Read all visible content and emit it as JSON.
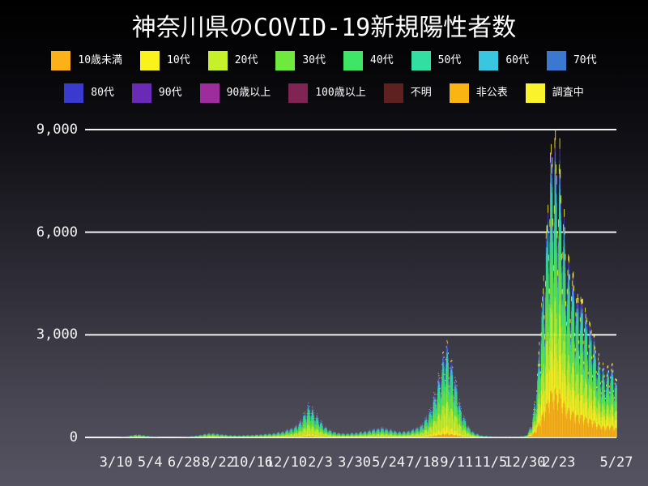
{
  "title": "神奈川県のCOVID-19新規陽性者数",
  "legend": {
    "row1": [
      {
        "label": "10歳未満",
        "color": "#FCB116"
      },
      {
        "label": "10代",
        "color": "#F9F21D"
      },
      {
        "label": "20代",
        "color": "#C6F12A"
      },
      {
        "label": "30代",
        "color": "#6FE93C"
      },
      {
        "label": "40代",
        "color": "#3FE566"
      },
      {
        "label": "50代",
        "color": "#31DFA2"
      },
      {
        "label": "60代",
        "color": "#39C6E0"
      },
      {
        "label": "70代",
        "color": "#3C78D0"
      }
    ],
    "row2": [
      {
        "label": "80代",
        "color": "#3A3ACF"
      },
      {
        "label": "90代",
        "color": "#6A2AB8"
      },
      {
        "label": "90歳以上",
        "color": "#9D2C9C"
      },
      {
        "label": "100歳以上",
        "color": "#802453"
      },
      {
        "label": "不明",
        "color": "#5F2020"
      },
      {
        "label": "非公表",
        "color": "#FBB513"
      },
      {
        "label": "調査中",
        "color": "#FAF32B"
      }
    ]
  },
  "chart_data": {
    "type": "bar",
    "subtype": "stacked-daily-bars",
    "title": "神奈川県のCOVID-19新規陽性者数",
    "xlabel": "",
    "ylabel": "",
    "ylim": [
      0,
      9200
    ],
    "grid": "horizontal-white-lines",
    "legend_position": "top-two-rows",
    "y_ticks": [
      {
        "value": 0,
        "label": "0"
      },
      {
        "value": 3000,
        "label": "3,000"
      },
      {
        "value": 6000,
        "label": "6,000"
      },
      {
        "value": 9000,
        "label": "9,000"
      }
    ],
    "x_total_days": 858,
    "x_ticks": [
      {
        "day": 50,
        "label": "3/10"
      },
      {
        "day": 105,
        "label": "5/4"
      },
      {
        "day": 160,
        "label": "6/28"
      },
      {
        "day": 215,
        "label": "8/22"
      },
      {
        "day": 270,
        "label": "10/16"
      },
      {
        "day": 325,
        "label": "12/10"
      },
      {
        "day": 380,
        "label": "2/3"
      },
      {
        "day": 435,
        "label": "3/30"
      },
      {
        "day": 490,
        "label": "5/24"
      },
      {
        "day": 545,
        "label": "7/18"
      },
      {
        "day": 600,
        "label": "9/11"
      },
      {
        "day": 655,
        "label": "11/5"
      },
      {
        "day": 710,
        "label": "12/30"
      },
      {
        "day": 765,
        "label": "2/23"
      },
      {
        "day": 858,
        "label": "5/27"
      }
    ],
    "series": [
      {
        "name": "10歳未満",
        "color": "#FCB116"
      },
      {
        "name": "10代",
        "color": "#F9F21D"
      },
      {
        "name": "20代",
        "color": "#C6F12A"
      },
      {
        "name": "30代",
        "color": "#6FE93C"
      },
      {
        "name": "40代",
        "color": "#3FE566"
      },
      {
        "name": "50代",
        "color": "#31DFA2"
      },
      {
        "name": "60代",
        "color": "#39C6E0"
      },
      {
        "name": "70代",
        "color": "#3C78D0"
      },
      {
        "name": "80代",
        "color": "#3A3ACF"
      },
      {
        "name": "90代",
        "color": "#6A2AB8"
      },
      {
        "name": "90歳以上",
        "color": "#9D2C9C"
      },
      {
        "name": "100歳以上",
        "color": "#802453"
      },
      {
        "name": "不明",
        "color": "#5F2020"
      },
      {
        "name": "非公表",
        "color": "#FBB513"
      },
      {
        "name": "調査中",
        "color": "#FAF32B"
      }
    ],
    "compositions": {
      "switch_day": 715,
      "pre_omicron": [
        0.04,
        0.08,
        0.255,
        0.175,
        0.15,
        0.11,
        0.07,
        0.05,
        0.035,
        0.012,
        0.003,
        0.001,
        0.001,
        0.004,
        0.014
      ],
      "omicron": [
        0.16,
        0.145,
        0.15,
        0.155,
        0.15,
        0.085,
        0.05,
        0.032,
        0.024,
        0.009,
        0.002,
        0.001,
        0.001,
        0.004,
        0.032
      ]
    },
    "weekly_pattern": [
      0.58,
      0.8,
      0.96,
      1.0,
      0.97,
      0.94,
      0.7
    ],
    "envelope_daily_total": [
      [
        0,
        0
      ],
      [
        20,
        1
      ],
      [
        40,
        3
      ],
      [
        55,
        8
      ],
      [
        70,
        45
      ],
      [
        82,
        95
      ],
      [
        90,
        80
      ],
      [
        105,
        40
      ],
      [
        120,
        12
      ],
      [
        140,
        10
      ],
      [
        160,
        18
      ],
      [
        175,
        45
      ],
      [
        190,
        95
      ],
      [
        200,
        135
      ],
      [
        215,
        110
      ],
      [
        230,
        75
      ],
      [
        245,
        60
      ],
      [
        260,
        70
      ],
      [
        275,
        85
      ],
      [
        290,
        105
      ],
      [
        305,
        130
      ],
      [
        320,
        190
      ],
      [
        335,
        300
      ],
      [
        345,
        430
      ],
      [
        352,
        720
      ],
      [
        360,
        960
      ],
      [
        366,
        920
      ],
      [
        375,
        640
      ],
      [
        385,
        380
      ],
      [
        395,
        220
      ],
      [
        410,
        130
      ],
      [
        425,
        125
      ],
      [
        440,
        160
      ],
      [
        455,
        200
      ],
      [
        465,
        250
      ],
      [
        478,
        300
      ],
      [
        488,
        270
      ],
      [
        500,
        200
      ],
      [
        512,
        170
      ],
      [
        522,
        210
      ],
      [
        532,
        260
      ],
      [
        545,
        430
      ],
      [
        555,
        780
      ],
      [
        565,
        1350
      ],
      [
        575,
        2300
      ],
      [
        583,
        2820
      ],
      [
        590,
        2500
      ],
      [
        598,
        1700
      ],
      [
        608,
        800
      ],
      [
        618,
        350
      ],
      [
        628,
        140
      ],
      [
        640,
        60
      ],
      [
        655,
        35
      ],
      [
        670,
        25
      ],
      [
        685,
        20
      ],
      [
        700,
        25
      ],
      [
        712,
        60
      ],
      [
        720,
        350
      ],
      [
        728,
        1400
      ],
      [
        736,
        3600
      ],
      [
        744,
        6200
      ],
      [
        750,
        7900
      ],
      [
        758,
        9150
      ],
      [
        762,
        8500
      ],
      [
        766,
        8200
      ],
      [
        770,
        7000
      ],
      [
        774,
        6300
      ],
      [
        778,
        5600
      ],
      [
        784,
        4900
      ],
      [
        790,
        4600
      ],
      [
        796,
        4300
      ],
      [
        803,
        4000
      ],
      [
        810,
        3700
      ],
      [
        816,
        3300
      ],
      [
        822,
        2900
      ],
      [
        828,
        2500
      ],
      [
        834,
        2100
      ],
      [
        840,
        1900
      ],
      [
        846,
        2300
      ],
      [
        851,
        2100
      ],
      [
        858,
        1700
      ]
    ]
  },
  "plot_style": {
    "gridline_color": "#f2f2f2",
    "text_color": "#ffffff",
    "background_top": "#000000",
    "background_bottom": "#555361"
  }
}
